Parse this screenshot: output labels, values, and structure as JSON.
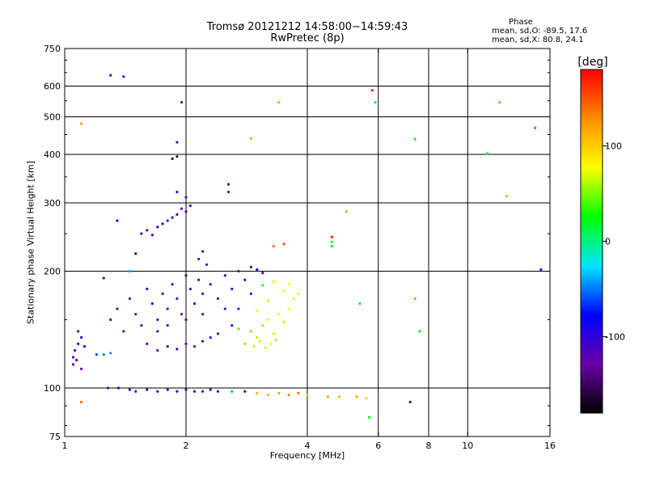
{
  "chart_data": {
    "type": "scatter",
    "title": "Tromsø 20121212 14:58:00−14:59:43",
    "subtitle": "RwPretec (8p)",
    "xlabel": "Frequency [MHz]",
    "ylabel": "Stationary phase Virtual Height [km]",
    "xscale": "log",
    "yscale": "log",
    "xlim": [
      1,
      16
    ],
    "ylim": [
      75,
      750
    ],
    "x_ticks": [
      1,
      2,
      4,
      6,
      8,
      10,
      16
    ],
    "x_tick_labels": [
      "1",
      "2",
      "4",
      "6",
      "8",
      "10",
      "16"
    ],
    "y_ticks": [
      75,
      100,
      200,
      300,
      400,
      500,
      600,
      750
    ],
    "y_tick_labels": [
      "75",
      "100",
      "200",
      "300",
      "400",
      "500",
      "600",
      "750"
    ],
    "y_gridlines": [
      100,
      200,
      300,
      400,
      500,
      600
    ],
    "x_gridlines": [
      2,
      4,
      6,
      8,
      10
    ],
    "grid": true,
    "stats": {
      "heading": "Phase",
      "line_o": "mean, sd,O: -89.5, 17.6",
      "line_x": "mean, sd,X: 80.8, 24.1"
    },
    "colorbar": {
      "label": "[deg]",
      "range": [
        -180,
        180
      ],
      "ticks": [
        100,
        0,
        -100
      ],
      "tick_labels": [
        "100",
        "0",
        "-100"
      ],
      "stops": [
        "#000000",
        "#6a00a8",
        "#0000ff",
        "#00e5ff",
        "#00ff00",
        "#ffff00",
        "#ff8c00",
        "#ff0000"
      ]
    },
    "series": [
      {
        "points": [
          [
            1.05,
            115,
            -130
          ],
          [
            1.05,
            120,
            -120
          ],
          [
            1.06,
            125,
            -110
          ],
          [
            1.07,
            118,
            -140
          ],
          [
            1.08,
            130,
            -100
          ],
          [
            1.08,
            140,
            -120
          ],
          [
            1.1,
            112,
            -130
          ],
          [
            1.1,
            135,
            -90
          ],
          [
            1.12,
            128,
            -80
          ],
          [
            1.2,
            122,
            -60
          ],
          [
            1.25,
            122,
            -50
          ],
          [
            1.3,
            123,
            -45
          ],
          [
            1.3,
            150,
            -110
          ],
          [
            1.35,
            160,
            -120
          ],
          [
            1.4,
            140,
            -130
          ],
          [
            1.45,
            170,
            -100
          ],
          [
            1.5,
            155,
            -115
          ],
          [
            1.55,
            145,
            -125
          ],
          [
            1.6,
            180,
            -110
          ],
          [
            1.65,
            165,
            -105
          ],
          [
            1.7,
            150,
            -120
          ],
          [
            1.75,
            175,
            -115
          ],
          [
            1.8,
            160,
            -130
          ],
          [
            1.85,
            185,
            -110
          ],
          [
            1.9,
            170,
            -120
          ],
          [
            1.95,
            155,
            -125
          ],
          [
            2.0,
            195,
            -110
          ],
          [
            2.05,
            180,
            -115
          ],
          [
            2.1,
            165,
            -105
          ],
          [
            2.15,
            190,
            -120
          ],
          [
            2.2,
            175,
            -110
          ],
          [
            2.3,
            185,
            -115
          ],
          [
            2.4,
            170,
            -120
          ],
          [
            2.5,
            195,
            -110
          ],
          [
            2.6,
            180,
            -105
          ],
          [
            2.7,
            160,
            -115
          ],
          [
            2.8,
            190,
            -100
          ],
          [
            2.9,
            175,
            -110
          ],
          [
            1.6,
            130,
            -120
          ],
          [
            1.7,
            125,
            -130
          ],
          [
            1.8,
            128,
            -115
          ],
          [
            1.9,
            126,
            -110
          ],
          [
            2.0,
            130,
            -120
          ],
          [
            2.1,
            128,
            -125
          ],
          [
            2.2,
            132,
            -115
          ],
          [
            2.3,
            135,
            -110
          ],
          [
            2.4,
            138,
            -120
          ],
          [
            1.7,
            140,
            -120
          ],
          [
            1.8,
            145,
            -115
          ],
          [
            2.0,
            150,
            -110
          ],
          [
            2.2,
            155,
            -120
          ],
          [
            2.5,
            160,
            -115
          ],
          [
            2.6,
            145,
            -110
          ],
          [
            1.55,
            250,
            -110
          ],
          [
            1.6,
            255,
            -120
          ],
          [
            1.65,
            248,
            -115
          ],
          [
            1.7,
            260,
            -105
          ],
          [
            1.75,
            265,
            -110
          ],
          [
            1.8,
            270,
            -120
          ],
          [
            1.85,
            275,
            -115
          ],
          [
            1.9,
            280,
            -110
          ],
          [
            1.95,
            290,
            -125
          ],
          [
            2.0,
            285,
            -110
          ],
          [
            2.05,
            295,
            -115
          ],
          [
            1.9,
            320,
            -100
          ],
          [
            2.0,
            310,
            -110
          ],
          [
            2.2,
            225,
            -110
          ],
          [
            2.15,
            215,
            -120
          ],
          [
            2.25,
            208,
            -115
          ],
          [
            2.55,
            335,
            -110
          ],
          [
            1.35,
            270,
            -90
          ],
          [
            1.5,
            222,
            -150
          ],
          [
            1.25,
            192,
            -110
          ],
          [
            1.45,
            200,
            -40
          ],
          [
            2.7,
            200,
            -110
          ],
          [
            2.9,
            205,
            -120
          ],
          [
            3.0,
            202,
            -105
          ],
          [
            3.1,
            198,
            -110
          ],
          [
            1.5,
            98,
            -110
          ],
          [
            1.6,
            99,
            -120
          ],
          [
            1.7,
            98,
            -115
          ],
          [
            1.8,
            99,
            -110
          ],
          [
            1.9,
            98,
            -105
          ],
          [
            2.0,
            99,
            -115
          ],
          [
            2.1,
            98,
            -110
          ],
          [
            2.2,
            98,
            -120
          ],
          [
            2.3,
            99,
            -115
          ],
          [
            2.4,
            98,
            -110
          ],
          [
            2.6,
            98,
            -40
          ],
          [
            2.8,
            98,
            -110
          ],
          [
            1.28,
            100,
            -120
          ],
          [
            1.36,
            100,
            -110
          ],
          [
            1.45,
            99,
            -100
          ],
          [
            1.9,
            430,
            -120
          ],
          [
            1.9,
            395,
            -150
          ],
          [
            1.85,
            390,
            -160
          ],
          [
            1.95,
            545,
            -120
          ],
          [
            1.4,
            635,
            -120
          ],
          [
            1.3,
            640,
            -70
          ],
          [
            2.55,
            320,
            -110
          ]
        ]
      },
      {
        "points": [
          [
            2.9,
            140,
            50
          ],
          [
            3.0,
            135,
            60
          ],
          [
            3.1,
            145,
            55
          ],
          [
            3.2,
            150,
            70
          ],
          [
            3.3,
            138,
            65
          ],
          [
            3.4,
            155,
            75
          ],
          [
            3.5,
            148,
            60
          ],
          [
            3.6,
            160,
            80
          ],
          [
            3.7,
            170,
            70
          ],
          [
            3.8,
            175,
            75
          ],
          [
            2.8,
            130,
            55
          ],
          [
            2.95,
            128,
            60
          ],
          [
            3.05,
            132,
            70
          ],
          [
            3.15,
            127,
            65
          ],
          [
            3.25,
            130,
            75
          ],
          [
            3.35,
            133,
            60
          ],
          [
            2.7,
            142,
            40
          ],
          [
            3.0,
            158,
            80
          ],
          [
            3.2,
            168,
            70
          ],
          [
            3.5,
            178,
            85
          ],
          [
            3.3,
            188,
            90
          ],
          [
            3.6,
            185,
            75
          ],
          [
            3.0,
            97,
            110
          ],
          [
            3.2,
            96,
            110
          ],
          [
            3.4,
            97,
            120
          ],
          [
            3.6,
            96,
            130
          ],
          [
            3.8,
            97,
            140
          ],
          [
            4.0,
            96,
            110
          ],
          [
            4.5,
            95,
            120
          ],
          [
            4.8,
            95,
            110
          ],
          [
            5.3,
            95,
            115
          ],
          [
            5.6,
            94,
            100
          ],
          [
            3.3,
            232,
            140
          ],
          [
            3.5,
            235,
            150
          ],
          [
            4.6,
            245,
            170
          ],
          [
            4.6,
            238,
            10
          ],
          [
            5.0,
            285,
            120
          ],
          [
            2.9,
            440,
            120
          ],
          [
            3.4,
            545,
            120
          ],
          [
            1.1,
            480,
            120
          ],
          [
            1.1,
            92,
            140
          ],
          [
            12,
            545,
            130
          ],
          [
            14.7,
            468,
            150
          ],
          [
            12.5,
            312,
            110
          ],
          [
            5.8,
            585,
            175
          ],
          [
            5.9,
            545,
            20
          ],
          [
            4.6,
            232,
            20
          ],
          [
            5.4,
            165,
            20
          ],
          [
            7.4,
            170,
            30
          ],
          [
            7.4,
            438,
            30
          ],
          [
            11.2,
            402,
            20
          ],
          [
            7.6,
            140,
            20
          ],
          [
            5.7,
            84,
            20
          ],
          [
            3.1,
            184,
            30
          ],
          [
            15.2,
            202,
            -110
          ],
          [
            7.2,
            92,
            -110
          ]
        ]
      }
    ]
  }
}
